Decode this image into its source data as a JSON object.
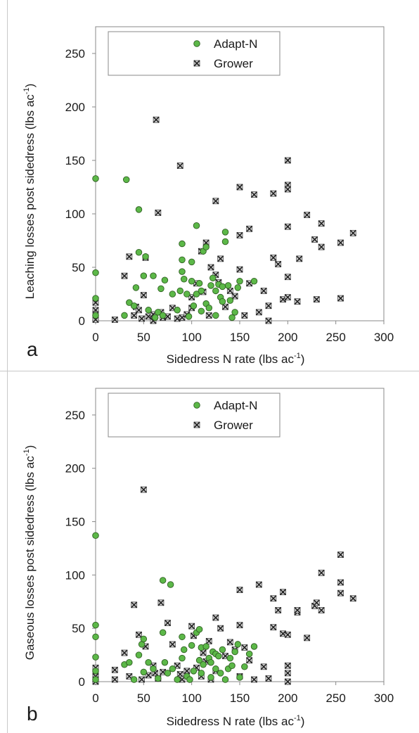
{
  "chart_data": [
    {
      "type": "scatter",
      "panel_label": "a",
      "xlabel_main": "Sidedress N rate (lbs ac",
      "xlabel_sup": "-1",
      "xlabel_end": ")",
      "ylabel_main": "Leaching losses post sidedress (lbs ac",
      "ylabel_sup": "-1",
      "ylabel_end": ")",
      "xlim": [
        0,
        300
      ],
      "ylim": [
        0,
        275
      ],
      "xticks": [
        "0",
        "50",
        "100",
        "150",
        "200",
        "250",
        "300"
      ],
      "yticks": [
        "0",
        "50",
        "100",
        "150",
        "200",
        "250"
      ],
      "legend_position": "top-center",
      "series": [
        {
          "name": "Adapt-N",
          "marker": "circle",
          "color": "#5cb848",
          "points": [
            [
              0,
              133
            ],
            [
              0,
              45
            ],
            [
              0,
              21
            ],
            [
              0,
              5
            ],
            [
              32,
              132
            ],
            [
              30,
              5
            ],
            [
              35,
              17
            ],
            [
              40,
              14
            ],
            [
              42,
              31
            ],
            [
              45,
              104
            ],
            [
              45,
              64
            ],
            [
              50,
              42
            ],
            [
              52,
              60
            ],
            [
              55,
              10
            ],
            [
              60,
              42
            ],
            [
              62,
              3
            ],
            [
              65,
              8
            ],
            [
              68,
              30
            ],
            [
              70,
              5
            ],
            [
              72,
              38
            ],
            [
              80,
              25
            ],
            [
              85,
              10
            ],
            [
              88,
              28
            ],
            [
              90,
              72
            ],
            [
              90,
              46
            ],
            [
              90,
              57
            ],
            [
              92,
              39
            ],
            [
              95,
              25
            ],
            [
              97,
              4
            ],
            [
              100,
              37
            ],
            [
              100,
              55
            ],
            [
              102,
              14
            ],
            [
              105,
              89
            ],
            [
              105,
              25
            ],
            [
              108,
              35
            ],
            [
              110,
              9
            ],
            [
              110,
              28
            ],
            [
              112,
              65
            ],
            [
              115,
              69
            ],
            [
              115,
              16
            ],
            [
              118,
              12
            ],
            [
              120,
              33
            ],
            [
              122,
              40
            ],
            [
              125,
              28
            ],
            [
              125,
              5
            ],
            [
              128,
              34
            ],
            [
              130,
              22
            ],
            [
              132,
              18
            ],
            [
              132,
              32
            ],
            [
              135,
              83
            ],
            [
              135,
              74
            ],
            [
              138,
              33
            ],
            [
              140,
              19
            ],
            [
              142,
              3
            ],
            [
              145,
              8
            ],
            [
              148,
              31
            ],
            [
              150,
              37
            ],
            [
              165,
              37
            ]
          ]
        },
        {
          "name": "Grower",
          "marker": "x-square",
          "color": "#4a4a4a",
          "points": [
            [
              0,
              17
            ],
            [
              0,
              10
            ],
            [
              0,
              6
            ],
            [
              0,
              3
            ],
            [
              0,
              1
            ],
            [
              20,
              1
            ],
            [
              30,
              42
            ],
            [
              35,
              60
            ],
            [
              40,
              5
            ],
            [
              42,
              13
            ],
            [
              45,
              10
            ],
            [
              48,
              2
            ],
            [
              50,
              24
            ],
            [
              52,
              59
            ],
            [
              55,
              4
            ],
            [
              60,
              6
            ],
            [
              60,
              0
            ],
            [
              63,
              188
            ],
            [
              65,
              101
            ],
            [
              68,
              8
            ],
            [
              70,
              3
            ],
            [
              75,
              4
            ],
            [
              80,
              12
            ],
            [
              85,
              2
            ],
            [
              88,
              145
            ],
            [
              90,
              3
            ],
            [
              95,
              6
            ],
            [
              100,
              22
            ],
            [
              100,
              12
            ],
            [
              105,
              35
            ],
            [
              110,
              65
            ],
            [
              112,
              27
            ],
            [
              115,
              73
            ],
            [
              118,
              5
            ],
            [
              120,
              50
            ],
            [
              125,
              112
            ],
            [
              125,
              43
            ],
            [
              128,
              36
            ],
            [
              130,
              58
            ],
            [
              135,
              13
            ],
            [
              140,
              28
            ],
            [
              145,
              23
            ],
            [
              150,
              125
            ],
            [
              150,
              80
            ],
            [
              150,
              48
            ],
            [
              155,
              5
            ],
            [
              160,
              86
            ],
            [
              160,
              35
            ],
            [
              165,
              118
            ],
            [
              170,
              8
            ],
            [
              175,
              28
            ],
            [
              180,
              14
            ],
            [
              180,
              0
            ],
            [
              185,
              119
            ],
            [
              185,
              59
            ],
            [
              190,
              53
            ],
            [
              195,
              20
            ],
            [
              200,
              150
            ],
            [
              200,
              127
            ],
            [
              200,
              123
            ],
            [
              200,
              88
            ],
            [
              200,
              41
            ],
            [
              200,
              22
            ],
            [
              210,
              18
            ],
            [
              212,
              58
            ],
            [
              220,
              99
            ],
            [
              228,
              76
            ],
            [
              230,
              20
            ],
            [
              235,
              91
            ],
            [
              235,
              69
            ],
            [
              255,
              73
            ],
            [
              255,
              21
            ],
            [
              268,
              82
            ]
          ]
        }
      ]
    },
    {
      "type": "scatter",
      "panel_label": "b",
      "xlabel_main": "Sidedress N rate (lbs ac",
      "xlabel_sup": "-1",
      "xlabel_end": ")",
      "ylabel_main": "Gaseous losses post sidedress (lbs ac",
      "ylabel_sup": "-1",
      "ylabel_end": ")",
      "xlim": [
        0,
        300
      ],
      "ylim": [
        0,
        275
      ],
      "xticks": [
        "0",
        "50",
        "100",
        "150",
        "200",
        "250",
        "300"
      ],
      "yticks": [
        "0",
        "50",
        "100",
        "150",
        "200",
        "250"
      ],
      "legend_position": "top-center",
      "series": [
        {
          "name": "Adapt-N",
          "marker": "circle",
          "color": "#5cb848",
          "points": [
            [
              0,
              137
            ],
            [
              0,
              53
            ],
            [
              0,
              42
            ],
            [
              0,
              23
            ],
            [
              0,
              10
            ],
            [
              0,
              2
            ],
            [
              30,
              16
            ],
            [
              35,
              18
            ],
            [
              40,
              2
            ],
            [
              45,
              25
            ],
            [
              48,
              35
            ],
            [
              50,
              9
            ],
            [
              50,
              40
            ],
            [
              55,
              18
            ],
            [
              60,
              12
            ],
            [
              65,
              3
            ],
            [
              70,
              95
            ],
            [
              70,
              46
            ],
            [
              72,
              18
            ],
            [
              75,
              8
            ],
            [
              78,
              91
            ],
            [
              80,
              12
            ],
            [
              85,
              2
            ],
            [
              90,
              22
            ],
            [
              90,
              42
            ],
            [
              92,
              30
            ],
            [
              95,
              5
            ],
            [
              98,
              2
            ],
            [
              100,
              34
            ],
            [
              102,
              10
            ],
            [
              105,
              46
            ],
            [
              108,
              20
            ],
            [
              108,
              49
            ],
            [
              110,
              8
            ],
            [
              110,
              32
            ],
            [
              112,
              16
            ],
            [
              115,
              33
            ],
            [
              118,
              22
            ],
            [
              120,
              4
            ],
            [
              120,
              18
            ],
            [
              122,
              28
            ],
            [
              125,
              26
            ],
            [
              125,
              12
            ],
            [
              128,
              24
            ],
            [
              130,
              8
            ],
            [
              132,
              30
            ],
            [
              135,
              2
            ],
            [
              138,
              12
            ],
            [
              140,
              22
            ],
            [
              142,
              15
            ],
            [
              145,
              28
            ],
            [
              148,
              35
            ],
            [
              150,
              4
            ],
            [
              155,
              14
            ],
            [
              160,
              26
            ],
            [
              165,
              33
            ]
          ]
        },
        {
          "name": "Grower",
          "marker": "x-square",
          "color": "#4a4a4a",
          "points": [
            [
              0,
              13
            ],
            [
              0,
              9
            ],
            [
              0,
              5
            ],
            [
              0,
              2
            ],
            [
              0,
              0
            ],
            [
              20,
              11
            ],
            [
              20,
              2
            ],
            [
              30,
              27
            ],
            [
              35,
              5
            ],
            [
              40,
              72
            ],
            [
              45,
              44
            ],
            [
              48,
              2
            ],
            [
              50,
              180
            ],
            [
              52,
              33
            ],
            [
              55,
              6
            ],
            [
              60,
              15
            ],
            [
              62,
              8
            ],
            [
              65,
              3
            ],
            [
              68,
              74
            ],
            [
              70,
              9
            ],
            [
              75,
              55
            ],
            [
              80,
              35
            ],
            [
              85,
              15
            ],
            [
              88,
              7
            ],
            [
              90,
              2
            ],
            [
              95,
              10
            ],
            [
              100,
              52
            ],
            [
              102,
              43
            ],
            [
              105,
              13
            ],
            [
              110,
              5
            ],
            [
              112,
              27
            ],
            [
              115,
              19
            ],
            [
              118,
              38
            ],
            [
              120,
              2
            ],
            [
              125,
              60
            ],
            [
              125,
              10
            ],
            [
              130,
              50
            ],
            [
              135,
              24
            ],
            [
              140,
              37
            ],
            [
              145,
              30
            ],
            [
              150,
              86
            ],
            [
              150,
              53
            ],
            [
              150,
              5
            ],
            [
              155,
              32
            ],
            [
              160,
              20
            ],
            [
              165,
              2
            ],
            [
              170,
              91
            ],
            [
              175,
              14
            ],
            [
              180,
              3
            ],
            [
              185,
              78
            ],
            [
              185,
              51
            ],
            [
              190,
              67
            ],
            [
              195,
              84
            ],
            [
              195,
              45
            ],
            [
              200,
              44
            ],
            [
              200,
              15
            ],
            [
              200,
              8
            ],
            [
              200,
              0
            ],
            [
              210,
              65
            ],
            [
              210,
              67
            ],
            [
              220,
              41
            ],
            [
              228,
              71
            ],
            [
              230,
              74
            ],
            [
              235,
              102
            ],
            [
              235,
              67
            ],
            [
              255,
              119
            ],
            [
              255,
              93
            ],
            [
              255,
              83
            ],
            [
              268,
              78
            ]
          ]
        }
      ]
    }
  ]
}
